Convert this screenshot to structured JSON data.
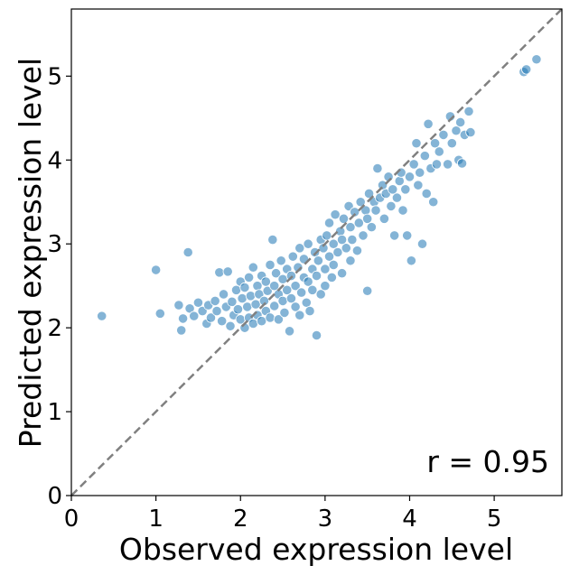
{
  "chart_data": {
    "type": "scatter",
    "title": "",
    "xlabel": "Observed expression level",
    "ylabel": "Predicted expression level",
    "xlim": [
      0,
      5.8
    ],
    "ylim": [
      0,
      5.8
    ],
    "x_ticks": [
      "0",
      "1",
      "2",
      "3",
      "4",
      "5"
    ],
    "y_ticks": [
      "0",
      "1",
      "2",
      "3",
      "4",
      "5"
    ],
    "grid": false,
    "annotation": "r = 0.95",
    "point_color": "#1f77b4",
    "identity_line_color": "#808080",
    "series": [
      {
        "points": [
          [
            0.36,
            2.14
          ],
          [
            1.0,
            2.69
          ],
          [
            1.05,
            2.17
          ],
          [
            1.27,
            2.27
          ],
          [
            1.3,
            1.97
          ],
          [
            1.32,
            2.11
          ],
          [
            1.38,
            2.9
          ],
          [
            1.4,
            2.23
          ],
          [
            1.45,
            2.14
          ],
          [
            1.5,
            2.3
          ],
          [
            1.55,
            2.2
          ],
          [
            1.6,
            2.05
          ],
          [
            1.62,
            2.27
          ],
          [
            1.65,
            2.12
          ],
          [
            1.7,
            2.32
          ],
          [
            1.72,
            2.2
          ],
          [
            1.75,
            2.66
          ],
          [
            1.78,
            2.08
          ],
          [
            1.8,
            2.4
          ],
          [
            1.83,
            2.25
          ],
          [
            1.85,
            2.67
          ],
          [
            1.88,
            2.02
          ],
          [
            1.9,
            2.31
          ],
          [
            1.92,
            2.15
          ],
          [
            1.95,
            2.45
          ],
          [
            1.97,
            2.22
          ],
          [
            2.0,
            2.55
          ],
          [
            2.0,
            2.1
          ],
          [
            2.02,
            2.35
          ],
          [
            2.05,
            2.0
          ],
          [
            2.05,
            2.48
          ],
          [
            2.08,
            2.25
          ],
          [
            2.1,
            2.6
          ],
          [
            2.1,
            2.12
          ],
          [
            2.12,
            2.38
          ],
          [
            2.15,
            2.05
          ],
          [
            2.15,
            2.72
          ],
          [
            2.18,
            2.28
          ],
          [
            2.2,
            2.5
          ],
          [
            2.2,
            2.15
          ],
          [
            2.22,
            2.4
          ],
          [
            2.25,
            2.62
          ],
          [
            2.25,
            2.08
          ],
          [
            2.28,
            2.32
          ],
          [
            2.3,
            2.55
          ],
          [
            2.3,
            2.2
          ],
          [
            2.32,
            2.44
          ],
          [
            2.35,
            2.75
          ],
          [
            2.35,
            2.12
          ],
          [
            2.38,
            3.05
          ],
          [
            2.4,
            2.5
          ],
          [
            2.4,
            2.26
          ],
          [
            2.42,
            2.65
          ],
          [
            2.45,
            2.1
          ],
          [
            2.45,
            2.4
          ],
          [
            2.48,
            2.8
          ],
          [
            2.5,
            2.32
          ],
          [
            2.5,
            2.58
          ],
          [
            2.52,
            2.18
          ],
          [
            2.55,
            2.45
          ],
          [
            2.55,
            2.7
          ],
          [
            2.58,
            1.96
          ],
          [
            2.6,
            2.35
          ],
          [
            2.6,
            2.62
          ],
          [
            2.62,
            2.85
          ],
          [
            2.65,
            2.25
          ],
          [
            2.65,
            2.5
          ],
          [
            2.68,
            2.72
          ],
          [
            2.7,
            2.15
          ],
          [
            2.7,
            2.95
          ],
          [
            2.72,
            2.42
          ],
          [
            2.75,
            2.6
          ],
          [
            2.75,
            2.82
          ],
          [
            2.78,
            2.3
          ],
          [
            2.8,
            2.55
          ],
          [
            2.8,
            3.0
          ],
          [
            2.82,
            2.2
          ],
          [
            2.85,
            2.7
          ],
          [
            2.85,
            2.45
          ],
          [
            2.88,
            2.9
          ],
          [
            2.9,
            1.91
          ],
          [
            2.9,
            2.62
          ],
          [
            2.92,
            2.8
          ],
          [
            2.95,
            3.05
          ],
          [
            2.95,
            2.4
          ],
          [
            2.98,
            2.95
          ],
          [
            3.0,
            2.7
          ],
          [
            3.0,
            2.5
          ],
          [
            3.02,
            3.1
          ],
          [
            3.05,
            2.85
          ],
          [
            3.05,
            3.25
          ],
          [
            3.08,
            2.6
          ],
          [
            3.1,
            3.0
          ],
          [
            3.1,
            2.75
          ],
          [
            3.12,
            3.35
          ],
          [
            3.15,
            2.9
          ],
          [
            3.18,
            3.15
          ],
          [
            3.2,
            2.65
          ],
          [
            3.2,
            3.05
          ],
          [
            3.22,
            3.3
          ],
          [
            3.25,
            2.95
          ],
          [
            3.28,
            3.45
          ],
          [
            3.3,
            3.2
          ],
          [
            3.3,
            2.8
          ],
          [
            3.32,
            3.05
          ],
          [
            3.35,
            3.38
          ],
          [
            3.38,
            2.92
          ],
          [
            3.4,
            3.25
          ],
          [
            3.42,
            3.5
          ],
          [
            3.45,
            3.1
          ],
          [
            3.48,
            3.4
          ],
          [
            3.5,
            2.44
          ],
          [
            3.5,
            3.3
          ],
          [
            3.52,
            3.6
          ],
          [
            3.55,
            3.2
          ],
          [
            3.58,
            3.5
          ],
          [
            3.6,
            3.4
          ],
          [
            3.62,
            3.9
          ],
          [
            3.65,
            3.55
          ],
          [
            3.68,
            3.7
          ],
          [
            3.7,
            3.3
          ],
          [
            3.72,
            3.6
          ],
          [
            3.75,
            3.8
          ],
          [
            3.78,
            3.45
          ],
          [
            3.8,
            3.65
          ],
          [
            3.82,
            3.1
          ],
          [
            3.85,
            3.55
          ],
          [
            3.88,
            3.75
          ],
          [
            3.9,
            3.85
          ],
          [
            3.92,
            3.4
          ],
          [
            3.95,
            3.65
          ],
          [
            3.97,
            3.1
          ],
          [
            4.0,
            3.8
          ],
          [
            4.02,
            2.8
          ],
          [
            4.05,
            3.95
          ],
          [
            4.08,
            4.2
          ],
          [
            4.1,
            3.7
          ],
          [
            4.12,
            3.85
          ],
          [
            4.15,
            3.0
          ],
          [
            4.18,
            4.05
          ],
          [
            4.2,
            3.6
          ],
          [
            4.22,
            4.43
          ],
          [
            4.25,
            3.9
          ],
          [
            4.28,
            3.5
          ],
          [
            4.3,
            4.2
          ],
          [
            4.32,
            3.95
          ],
          [
            4.35,
            4.1
          ],
          [
            4.4,
            4.3
          ],
          [
            4.45,
            3.95
          ],
          [
            4.48,
            4.52
          ],
          [
            4.5,
            4.2
          ],
          [
            4.55,
            4.35
          ],
          [
            4.58,
            4.0
          ],
          [
            4.6,
            4.45
          ],
          [
            4.62,
            3.96
          ],
          [
            4.65,
            4.3
          ],
          [
            4.7,
            4.58
          ],
          [
            4.72,
            4.33
          ],
          [
            5.35,
            5.05
          ],
          [
            5.38,
            5.08
          ],
          [
            5.5,
            5.2
          ]
        ]
      }
    ]
  }
}
